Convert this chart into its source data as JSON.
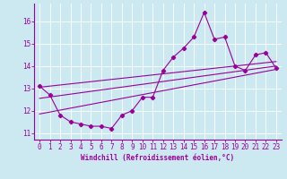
{
  "xlabel": "Windchill (Refroidissement éolien,°C)",
  "xlim": [
    -0.5,
    23.5
  ],
  "ylim": [
    10.7,
    16.8
  ],
  "yticks": [
    11,
    12,
    13,
    14,
    15,
    16
  ],
  "xticks": [
    0,
    1,
    2,
    3,
    4,
    5,
    6,
    7,
    8,
    9,
    10,
    11,
    12,
    13,
    14,
    15,
    16,
    17,
    18,
    19,
    20,
    21,
    22,
    23
  ],
  "bg_color": "#cce8f0",
  "line_color": "#990099",
  "main_series_x": [
    0,
    1,
    2,
    3,
    4,
    5,
    6,
    7,
    8,
    9,
    10,
    11,
    12,
    13,
    14,
    15,
    16,
    17,
    18,
    19,
    20,
    21,
    22,
    23
  ],
  "main_series_y": [
    13.1,
    12.7,
    11.8,
    11.5,
    11.4,
    11.3,
    11.3,
    11.2,
    11.8,
    12.0,
    12.6,
    12.6,
    13.8,
    14.4,
    14.8,
    15.3,
    16.4,
    15.2,
    15.3,
    14.0,
    13.8,
    14.5,
    14.6,
    13.9
  ],
  "reg_line1_x": [
    0,
    23
  ],
  "reg_line1_y": [
    13.05,
    14.2
  ],
  "reg_line2_x": [
    0,
    23
  ],
  "reg_line2_y": [
    12.55,
    14.0
  ],
  "reg_line3_x": [
    0,
    23
  ],
  "reg_line3_y": [
    11.85,
    13.85
  ],
  "grid_color": "#ffffff",
  "spine_color": "#888899",
  "tick_fontsize": 5.5,
  "xlabel_fontsize": 5.5
}
